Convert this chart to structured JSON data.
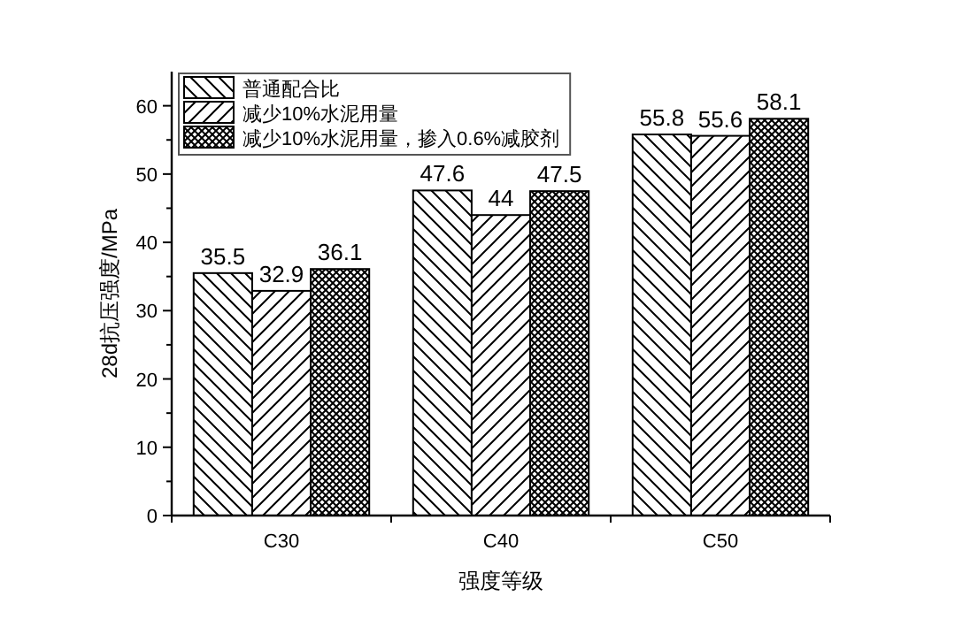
{
  "chart_data": {
    "type": "bar",
    "xlabel": "强度等级",
    "ylabel": "28d抗压强度/MPa",
    "categories": [
      "C30",
      "C40",
      "C50"
    ],
    "series": [
      {
        "name": "普通配合比",
        "color": "#000000",
        "values": [
          35.5,
          47.6,
          55.8
        ]
      },
      {
        "name": "减少10%水泥用量",
        "color": "#000000",
        "values": [
          32.9,
          44,
          55.6
        ]
      },
      {
        "name": "减少10%水泥用量，掺入0.6%减胶剂",
        "color": "#000000",
        "values": [
          36.1,
          47.5,
          58.1
        ]
      }
    ],
    "ylim": [
      0,
      65
    ],
    "yticks": [
      0,
      {
        "value": 5,
        "label": null
      },
      10,
      {
        "value": 15,
        "label": null
      },
      20,
      {
        "value": 25,
        "label": null
      },
      30,
      {
        "value": 35,
        "label": null
      },
      40,
      {
        "value": 45,
        "label": null
      },
      50,
      {
        "value": 55,
        "label": null
      },
      60
    ],
    "data_labels": true,
    "legend": "top left",
    "grid": false
  }
}
